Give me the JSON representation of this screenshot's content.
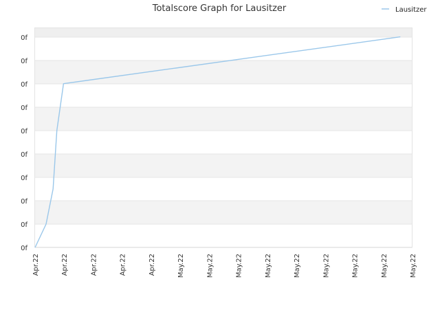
{
  "chart_data": {
    "type": "line",
    "title": "Totalscore Graph for Lausitzer",
    "xlabel": "",
    "ylabel": "",
    "legend": {
      "position": "top-right",
      "entries": [
        "Lausitzer"
      ]
    },
    "grid": true,
    "x_tick_labels": [
      "Apr.22",
      "Apr.22",
      "Apr.22",
      "Apr.22",
      "Apr.22",
      "May.22",
      "May.22",
      "May.22",
      "May.22",
      "May.22",
      "May.22",
      "May.22",
      "May.22",
      "May.22"
    ],
    "y_tick_labels": [
      "0f",
      "0f",
      "0f",
      "0f",
      "0f",
      "0f",
      "0f",
      "0f",
      "0f",
      "0f"
    ],
    "xlim": [
      0,
      13
    ],
    "ylim": [
      0,
      9.4
    ],
    "series": [
      {
        "name": "Lausitzer",
        "color": "#9ac7ea",
        "points": [
          {
            "x": 0.0,
            "y": 0.0
          },
          {
            "x": 0.38,
            "y": 1.0
          },
          {
            "x": 0.62,
            "y": 2.5
          },
          {
            "x": 0.75,
            "y": 5.0
          },
          {
            "x": 0.98,
            "y": 7.0
          },
          {
            "x": 12.58,
            "y": 9.0
          }
        ]
      }
    ]
  }
}
